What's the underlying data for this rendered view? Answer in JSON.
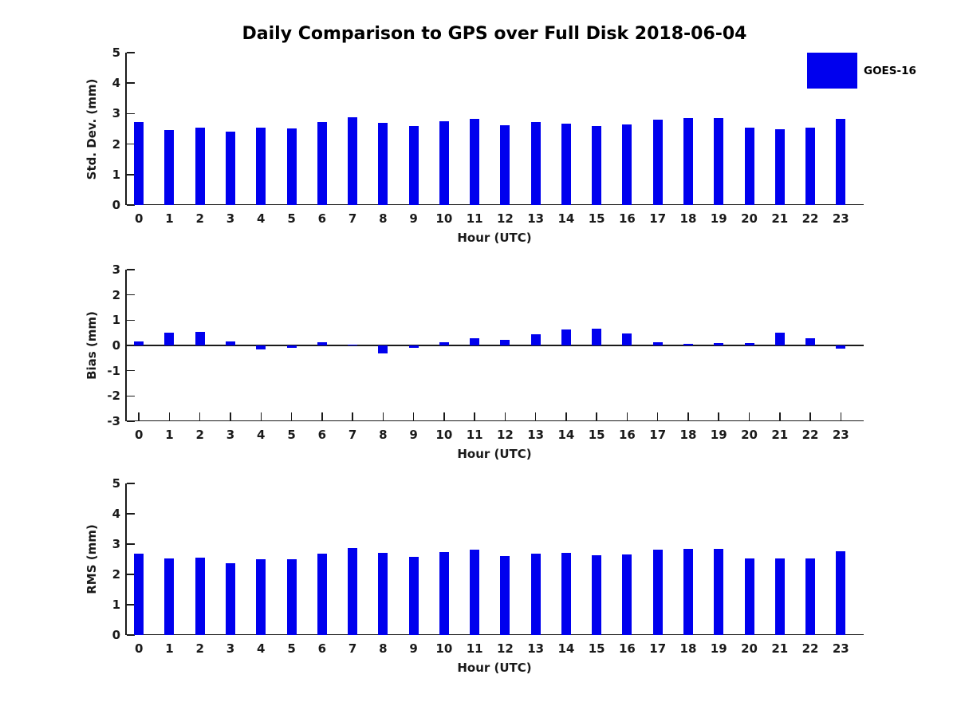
{
  "title": "Daily Comparison to GPS over Full Disk 2018-06-04",
  "legend": {
    "label": "GOES-16",
    "color": "#0000ee",
    "position": "top-right"
  },
  "chart_data": [
    {
      "type": "bar",
      "title": "",
      "xlabel": "Hour (UTC)",
      "ylabel": "Std. Dev. (mm)",
      "categories": [
        "0",
        "1",
        "2",
        "3",
        "4",
        "5",
        "6",
        "7",
        "8",
        "9",
        "10",
        "11",
        "12",
        "13",
        "14",
        "15",
        "16",
        "17",
        "18",
        "19",
        "20",
        "21",
        "22",
        "23"
      ],
      "values": [
        2.71,
        2.47,
        2.53,
        2.4,
        2.53,
        2.51,
        2.71,
        2.87,
        2.69,
        2.58,
        2.76,
        2.84,
        2.62,
        2.71,
        2.66,
        2.58,
        2.64,
        2.81,
        2.86,
        2.85,
        2.55,
        2.5,
        2.53,
        2.82
      ],
      "series_name": "GOES-16",
      "bar_color": "#0000ee",
      "ylim": [
        0,
        5
      ],
      "ytick_step": 1,
      "xlim": [
        -0.45,
        23.75
      ],
      "grid": false
    },
    {
      "type": "bar",
      "title": "",
      "xlabel": "Hour (UTC)",
      "ylabel": "Bias (mm)",
      "categories": [
        "0",
        "1",
        "2",
        "3",
        "4",
        "5",
        "6",
        "7",
        "8",
        "9",
        "10",
        "11",
        "12",
        "13",
        "14",
        "15",
        "16",
        "17",
        "18",
        "19",
        "20",
        "21",
        "22",
        "23"
      ],
      "values": [
        0.16,
        0.5,
        0.53,
        0.17,
        -0.15,
        -0.08,
        0.12,
        0.04,
        -0.33,
        -0.08,
        0.14,
        0.28,
        0.22,
        0.43,
        0.62,
        0.66,
        0.48,
        0.13,
        0.05,
        0.09,
        0.08,
        0.5,
        0.3,
        -0.14
      ],
      "series_name": "GOES-16",
      "bar_color": "#0000ee",
      "ylim": [
        -3,
        3
      ],
      "ytick_step": 1,
      "xlim": [
        -0.45,
        23.75
      ],
      "grid": false
    },
    {
      "type": "bar",
      "title": "",
      "xlabel": "Hour (UTC)",
      "ylabel": "RMS (mm)",
      "categories": [
        "0",
        "1",
        "2",
        "3",
        "4",
        "5",
        "6",
        "7",
        "8",
        "9",
        "10",
        "11",
        "12",
        "13",
        "14",
        "15",
        "16",
        "17",
        "18",
        "19",
        "20",
        "21",
        "22",
        "23"
      ],
      "values": [
        2.69,
        2.53,
        2.56,
        2.38,
        2.5,
        2.5,
        2.69,
        2.87,
        2.7,
        2.59,
        2.74,
        2.82,
        2.6,
        2.69,
        2.72,
        2.64,
        2.66,
        2.82,
        2.84,
        2.83,
        2.53,
        2.53,
        2.52,
        2.77
      ],
      "series_name": "GOES-16",
      "bar_color": "#0000ee",
      "ylim": [
        0,
        5
      ],
      "ytick_step": 1,
      "xlim": [
        -0.45,
        23.75
      ],
      "grid": false
    }
  ]
}
